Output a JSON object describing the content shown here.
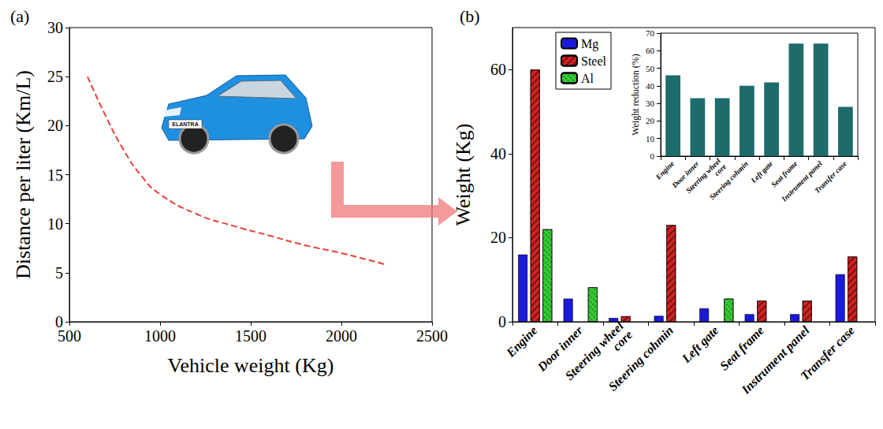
{
  "chart_data": [
    {
      "type": "line",
      "title": "(a)",
      "x_label": "Vehicle weight (Kg)",
      "y_label": "Distance per liter (Km/L)",
      "annotations": [
        "ELANTRA"
      ],
      "x": [
        600,
        700,
        800,
        900,
        1000,
        1200,
        1400,
        1600,
        1800,
        2000,
        2250
      ],
      "values": [
        25,
        21,
        17.5,
        14.8,
        13,
        11,
        9.8,
        8.8,
        7.8,
        7,
        5.8
      ],
      "color": "#e8413a",
      "line_style": "dashed",
      "marker": "none",
      "xlim": [
        500,
        2500
      ],
      "xticks": [
        500,
        1000,
        1500,
        2000,
        2500
      ],
      "ylim": [
        0,
        30
      ],
      "yticks": [
        0,
        5,
        10,
        15,
        20,
        25,
        30
      ],
      "grid": false
    },
    {
      "type": "bar",
      "title": "(b)",
      "y_label": "Weight (Kg)",
      "categories": [
        "Engine",
        "Door inner",
        "Steering wheel core",
        "Steering cohmin",
        "Left gate",
        "Seat frame",
        "Instrument panel",
        "Transfer case"
      ],
      "series": [
        {
          "name": "Mg",
          "color": "#1a1adb",
          "values": [
            16,
            5.5,
            0.9,
            1.4,
            3.2,
            1.8,
            1.8,
            11.3
          ]
        },
        {
          "name": "Steel",
          "color": "#d62020",
          "values": [
            60,
            null,
            1.3,
            23,
            null,
            5,
            5,
            15.5
          ]
        },
        {
          "name": "Al",
          "color": "#33cc33",
          "values": [
            22,
            8.2,
            null,
            null,
            5.5,
            null,
            null,
            null
          ]
        }
      ],
      "ylim": [
        0,
        70
      ],
      "yticks": [
        0,
        20,
        40,
        60
      ],
      "legend": "top-left",
      "grid": false
    },
    {
      "type": "bar",
      "y_label": "Weight reduction (%)",
      "categories": [
        "Engine",
        "Door inner",
        "Steering wheel core",
        "Steering cohmin",
        "Left gate",
        "Seat frame",
        "Instrument panel",
        "Transfer case"
      ],
      "values": [
        46,
        33,
        33,
        40,
        42,
        64,
        64,
        28
      ],
      "color": "#1e6b6b",
      "ylim": [
        0,
        70
      ],
      "yticks": [
        0,
        10,
        20,
        30,
        40,
        50,
        60,
        70
      ],
      "grid": false
    }
  ]
}
